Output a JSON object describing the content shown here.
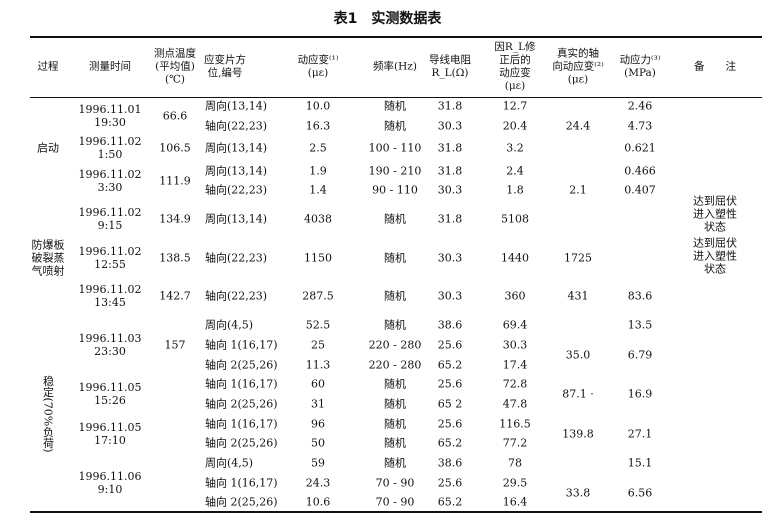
{
  "title": "表1　实测数据表",
  "headers": [
    "过程",
    "测量时间",
    "测点温度\n(平均值)\n(℃)",
    "应变片方\n位,编号",
    "动应变⁽¹⁾\n(με)",
    "频率(Hz)",
    "导线电阻\nR_L(Ω)",
    "因R_L修\n正后的\n动应变\n(με)",
    "真实的轴\n向动应变⁽²⁾\n(με)",
    "动应力⁽³⁾\n(MPa)",
    "备　　注"
  ],
  "rows": [
    {
      "orientation": "周向(13,14)",
      "strain": "10.0",
      "frequency": "随机",
      "resistance": "31.8",
      "corrected": "12.7"
    },
    {
      "orientation": "轴向(22,23)",
      "strain": "16.3",
      "frequency": "随机",
      "resistance": "30.3",
      "corrected": "20.4"
    },
    {
      "orientation": "周向(13,14)",
      "strain": "2.5",
      "frequency": "100 - 110",
      "resistance": "31.8",
      "corrected": "3.2"
    },
    {
      "orientation": "周向(13,14)",
      "strain": "1.9",
      "frequency": "190 - 210",
      "resistance": "31.8",
      "corrected": "2.4"
    },
    {
      "orientation": "轴向(22,23)",
      "strain": "1.4",
      "frequency": "90 - 110",
      "resistance": "30.3",
      "corrected": "1.8"
    },
    {
      "orientation": "周向(13,14)",
      "strain": "4038",
      "frequency": "随机",
      "resistance": "31.8",
      "corrected": "5108"
    },
    {
      "orientation": "轴向(22,23)",
      "strain": "1150",
      "frequency": "随机",
      "resistance": "30.3",
      "corrected": "1440"
    },
    {
      "orientation": "轴向(22,23)",
      "strain": "287.5",
      "frequency": "随机",
      "resistance": "30.3",
      "corrected": "360"
    },
    {
      "orientation": "周向(4,5)",
      "strain": "52.5",
      "frequency": "随机",
      "resistance": "38.6",
      "corrected": "69.4"
    },
    {
      "orientation": "轴向 1(16,17)",
      "strain": "25",
      "frequency": "220 - 280",
      "resistance": "25.6",
      "corrected": "30.3"
    },
    {
      "orientation": "轴向 2(25,26)",
      "strain": "11.3",
      "frequency": "220 - 280",
      "resistance": "65.2",
      "corrected": "17.4"
    },
    {
      "orientation": "轴向 1(16,17)",
      "strain": "60",
      "frequency": "随机",
      "resistance": "25.6",
      "corrected": "72.8"
    },
    {
      "orientation": "轴向 2(25,26)",
      "strain": "31",
      "frequency": "随机",
      "resistance": "65 2",
      "corrected": "47.8"
    },
    {
      "orientation": "轴向 1(16,17)",
      "strain": "96",
      "frequency": "随机",
      "resistance": "25.6",
      "corrected": "116.5"
    },
    {
      "orientation": "轴向 2(25,26)",
      "strain": "50",
      "frequency": "随机",
      "resistance": "65.2",
      "corrected": "77.2"
    },
    {
      "orientation": "周向(4,5)",
      "strain": "59",
      "frequency": "随机",
      "resistance": "38.6",
      "corrected": "78"
    },
    {
      "orientation": "轴向 1(16,17)",
      "strain": "24.3",
      "frequency": "70 - 90",
      "resistance": "25.6",
      "corrected": "29.5"
    },
    {
      "orientation": "轴向 2(25,26)",
      "strain": "10.6",
      "frequency": "70 - 90",
      "resistance": "65.2",
      "corrected": "16.4"
    }
  ],
  "process": [
    {
      "label": "启动",
      "rows": [
        0,
        4
      ]
    },
    {
      "label": "防爆板\n破裂蒸\n气喷射",
      "rows": [
        5,
        7
      ]
    },
    {
      "label": "稳定(70%负荷)",
      "rows": [
        8,
        17
      ],
      "vertical": true
    }
  ],
  "time": [
    {
      "label": "1996.11.01\n19:30",
      "rows": [
        0,
        1
      ]
    },
    {
      "label": "1996.11.02\n1:50",
      "rows": [
        2,
        2
      ]
    },
    {
      "label": "1996.11.02\n3:30",
      "rows": [
        3,
        4
      ]
    },
    {
      "label": "1996.11.02\n9:15",
      "rows": [
        5,
        5
      ]
    },
    {
      "label": "1996.11.02\n12:55",
      "rows": [
        6,
        6
      ]
    },
    {
      "label": "1996.11.02\n13:45",
      "rows": [
        7,
        7
      ]
    },
    {
      "label": "1996.11.03\n23:30",
      "rows": [
        8,
        10
      ]
    },
    {
      "label": "1996.11.05\n15:26",
      "rows": [
        11,
        12
      ]
    },
    {
      "label": "1996.11.05\n17:10",
      "rows": [
        13,
        14
      ]
    },
    {
      "label": "1996.11.06\n9:10",
      "rows": [
        15,
        17
      ]
    }
  ],
  "temperature": [
    {
      "label": "66.6",
      "rows": [
        0,
        1
      ]
    },
    {
      "label": "106.5",
      "rows": [
        2,
        2
      ]
    },
    {
      "label": "111.9",
      "rows": [
        3,
        4
      ]
    },
    {
      "label": "134.9",
      "rows": [
        5,
        5
      ]
    },
    {
      "label": "138.5",
      "rows": [
        6,
        6
      ]
    },
    {
      "label": "142.7",
      "rows": [
        7,
        7
      ]
    },
    {
      "label": "157",
      "rows": [
        8,
        10
      ]
    }
  ],
  "true_strain": [
    {
      "label": "24.4",
      "rows": [
        1,
        1
      ]
    },
    {
      "label": "2.1",
      "rows": [
        4,
        4
      ]
    },
    {
      "label": "1725",
      "rows": [
        6,
        6
      ]
    },
    {
      "label": "431",
      "rows": [
        7,
        7
      ]
    },
    {
      "label": "35.0",
      "rows": [
        9,
        10
      ]
    },
    {
      "label": "87.1 ·",
      "rows": [
        11,
        12
      ]
    },
    {
      "label": "139.8",
      "rows": [
        13,
        14
      ]
    },
    {
      "label": "33.8",
      "rows": [
        16,
        17
      ]
    }
  ],
  "stress": [
    {
      "label": "2.46",
      "rows": [
        0,
        0
      ]
    },
    {
      "label": "4.73",
      "rows": [
        1,
        1
      ]
    },
    {
      "label": "0.621",
      "rows": [
        2,
        2
      ]
    },
    {
      "label": "0.466",
      "rows": [
        3,
        3
      ]
    },
    {
      "label": "0.407",
      "rows": [
        4,
        4
      ]
    },
    {
      "label": "83.6",
      "rows": [
        7,
        7
      ]
    },
    {
      "label": "13.5",
      "rows": [
        8,
        8
      ]
    },
    {
      "label": "6.79",
      "rows": [
        9,
        10
      ]
    },
    {
      "label": "16.9",
      "rows": [
        11,
        12
      ]
    },
    {
      "label": "27.1",
      "rows": [
        13,
        14
      ]
    },
    {
      "label": "15.1",
      "rows": [
        15,
        15
      ]
    },
    {
      "label": "6.56",
      "rows": [
        16,
        17
      ]
    }
  ],
  "remarks": [
    {
      "label": "达到屈伏\n进入塑性\n状态",
      "rows": [
        5,
        5
      ]
    },
    {
      "label": "达到屈伏\n进入塑性\n状态",
      "rows": [
        6,
        6
      ]
    }
  ]
}
